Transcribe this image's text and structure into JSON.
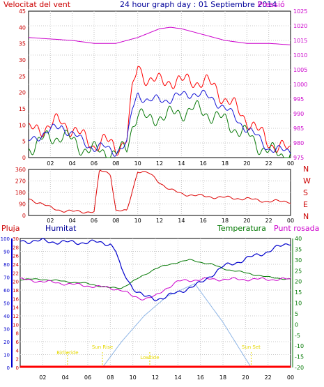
{
  "header": {
    "wind_title": "Velocitat del vent",
    "date_title": "24 hour graph day : 01 Septiembre 2014",
    "pressure_title": "Pressió"
  },
  "lower_header": {
    "rain": "Pluja",
    "humidity": "Humitat",
    "temperature": "Temperatura",
    "dew": "Punt rosada"
  },
  "colors": {
    "wind_gust": "#ff0000",
    "wind_avg": "#1515d6",
    "wind_other": "#0a7a0a",
    "pressure": "#cc00cc",
    "direction": "#dd0000",
    "humidity": "#0000cc",
    "temperature": "#007700",
    "dew": "#cc00cc",
    "solar": "#8fb6e6",
    "annotation": "#e6d800",
    "rain": "#ff0000",
    "title_red": "#cc0000",
    "title_blue": "#000099"
  },
  "chart_data": [
    {
      "type": "line",
      "name": "wind_pressure",
      "x_ticks": [
        "02",
        "04",
        "06",
        "08",
        "10",
        "12",
        "14",
        "16",
        "18",
        "20",
        "22",
        "00"
      ],
      "y_left_ticks": [
        "0",
        "5",
        "10",
        "15",
        "20",
        "25",
        "30",
        "35",
        "40",
        "45"
      ],
      "y_left_range": [
        0,
        45
      ],
      "y_right_ticks": [
        "975",
        "980",
        "985",
        "990",
        "995",
        "1000",
        "1005",
        "1010",
        "1015",
        "1020",
        "1025"
      ],
      "y_right_range": [
        975,
        1025
      ],
      "x_range_hours": [
        0,
        24
      ],
      "series": [
        {
          "key": "gust",
          "x": [
            0,
            1,
            2,
            3,
            4,
            5,
            6,
            7,
            8,
            9,
            9.5,
            10,
            11,
            12,
            13,
            14,
            15,
            16,
            17,
            18,
            19,
            20,
            21,
            22,
            23,
            24
          ],
          "values": [
            8,
            9,
            10,
            11,
            9,
            6,
            4,
            5,
            3,
            6,
            20,
            28,
            24,
            23,
            24,
            23,
            24,
            23,
            22,
            18,
            15,
            12,
            8,
            5,
            3,
            2
          ]
        },
        {
          "key": "average",
          "x": [
            0,
            1,
            2,
            3,
            4,
            5,
            6,
            7,
            8,
            9,
            9.5,
            10,
            11,
            12,
            13,
            14,
            15,
            16,
            17,
            18,
            19,
            20,
            21,
            22,
            23,
            24
          ],
          "values": [
            5,
            7,
            8,
            10,
            7,
            5,
            3,
            3,
            2,
            4,
            15,
            20,
            17,
            18,
            18,
            19,
            20,
            19,
            18,
            15,
            12,
            9,
            6,
            3,
            2,
            2
          ]
        },
        {
          "key": "other",
          "x": [
            0,
            1,
            2,
            3,
            4,
            5,
            6,
            7,
            8,
            9,
            9.5,
            10,
            11,
            12,
            13,
            14,
            15,
            16,
            17,
            18,
            19,
            20,
            21,
            22,
            23,
            24
          ],
          "values": [
            3,
            5,
            6,
            7,
            5,
            3,
            2,
            2,
            1,
            3,
            10,
            14,
            11,
            13,
            13,
            14,
            15,
            14,
            13,
            11,
            9,
            7,
            4,
            2,
            1,
            1
          ]
        },
        {
          "key": "pressure",
          "x": [
            0,
            2,
            4,
            6,
            8,
            10,
            12,
            13,
            14,
            16,
            18,
            20,
            22,
            24
          ],
          "values": [
            1016,
            1015.5,
            1015,
            1014,
            1014,
            1016,
            1019,
            1019.5,
            1019,
            1017,
            1015,
            1014,
            1014,
            1013.5
          ]
        }
      ]
    },
    {
      "type": "scatter",
      "name": "wind_direction",
      "y_ticks": [
        "0",
        "90",
        "180",
        "270",
        "360"
      ],
      "y_range": [
        0,
        360
      ],
      "direction_labels": [
        "N",
        "W",
        "S",
        "E",
        "N"
      ],
      "series": [
        {
          "key": "direction",
          "x": [
            0,
            1,
            2,
            3,
            4,
            5,
            6,
            6.5,
            7,
            7.5,
            8,
            9,
            10,
            11,
            12,
            13,
            14,
            16,
            18,
            20,
            22,
            24
          ],
          "values": [
            130,
            100,
            60,
            40,
            30,
            30,
            30,
            350,
            340,
            330,
            40,
            30,
            350,
            330,
            260,
            200,
            170,
            150,
            140,
            130,
            110,
            110
          ]
        }
      ]
    },
    {
      "type": "line",
      "name": "humidity_temperature",
      "rain_ticks": [
        "0",
        "2",
        "4",
        "6",
        "8",
        "10",
        "12",
        "14",
        "16",
        "18",
        "20",
        "22",
        "24",
        "26",
        "28",
        "30"
      ],
      "humidity_ticks": [
        "0",
        "10",
        "20",
        "30",
        "40",
        "50",
        "60",
        "70",
        "80",
        "90",
        "100"
      ],
      "humidity_range": [
        0,
        100
      ],
      "temp_ticks": [
        "-20",
        "-15",
        "-10",
        "-5",
        "0",
        "5",
        "10",
        "15",
        "20",
        "25",
        "30",
        "35",
        "40"
      ],
      "temp_range": [
        -20,
        40
      ],
      "annotations": [
        {
          "text": "Birlleride",
          "x_hour": 4.2,
          "color_key": "annotation"
        },
        {
          "text": "Sun Rise",
          "x_hour": 7.3,
          "color_key": "annotation"
        },
        {
          "text": "Lowtide",
          "x_hour": 11.5,
          "color_key": "annotation"
        },
        {
          "text": "Sun Set",
          "x_hour": 20.5,
          "color_key": "annotation"
        }
      ],
      "series": [
        {
          "key": "humidity",
          "x": [
            0,
            2,
            4,
            6,
            7,
            8,
            8.5,
            9,
            10,
            11,
            12,
            13,
            14,
            15,
            16,
            17,
            18,
            20,
            22,
            24
          ],
          "values": [
            98,
            98,
            97,
            97,
            97,
            96,
            90,
            75,
            62,
            55,
            53,
            55,
            58,
            62,
            65,
            72,
            78,
            84,
            90,
            97
          ]
        },
        {
          "key": "temperature",
          "x": [
            0,
            2,
            4,
            6,
            8,
            9,
            10,
            12,
            14,
            15,
            16,
            17,
            18,
            20,
            22,
            24
          ],
          "values": [
            21,
            21,
            20,
            19,
            17,
            17,
            20,
            26,
            29,
            30,
            29,
            28,
            26,
            24,
            22,
            21
          ]
        },
        {
          "key": "dew",
          "x": [
            0,
            2,
            4,
            6,
            8,
            9,
            10,
            11,
            12,
            13,
            14,
            16,
            18,
            20,
            22,
            24
          ],
          "values": [
            21,
            20,
            19,
            18,
            17,
            16,
            13,
            12,
            13,
            17,
            20,
            21,
            21,
            21,
            21,
            21
          ]
        },
        {
          "key": "solar",
          "x": [
            7.3,
            9,
            11,
            13,
            15.5,
            18,
            20.5
          ],
          "values": [
            0,
            20,
            40,
            55,
            65,
            35,
            0
          ]
        },
        {
          "key": "rain",
          "x": [
            0,
            24
          ],
          "values": [
            0,
            0
          ]
        }
      ]
    }
  ]
}
